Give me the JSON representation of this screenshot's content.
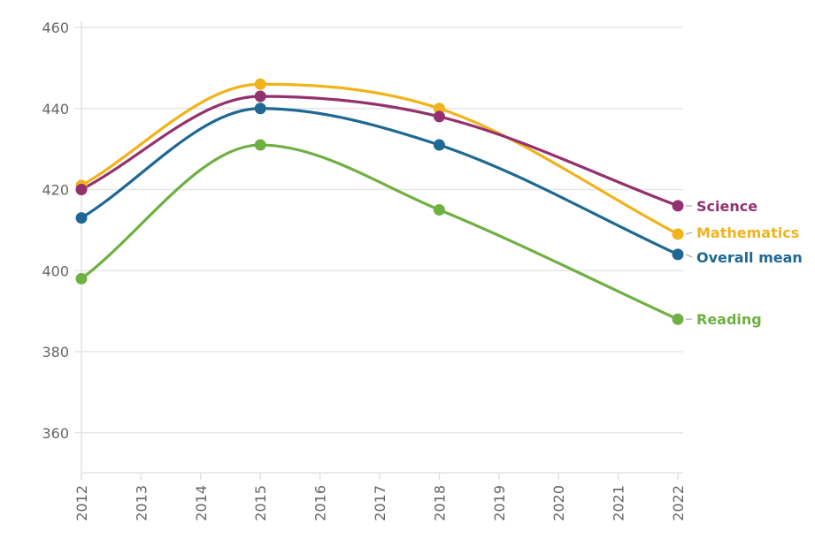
{
  "chart_data": {
    "type": "line",
    "title": "",
    "xlabel": "",
    "ylabel": "",
    "x": [
      2012,
      2015,
      2018,
      2022
    ],
    "xticks": [
      "2012",
      "2013",
      "2014",
      "2015",
      "2016",
      "2017",
      "2018",
      "2019",
      "2020",
      "2021",
      "2022"
    ],
    "xlim": [
      2012,
      2022
    ],
    "yticks": [
      "360",
      "380",
      "400",
      "420",
      "440",
      "460"
    ],
    "ylim": [
      350,
      460
    ],
    "grid": true,
    "legend": "right-end labels",
    "series": [
      {
        "name": "Science",
        "color": "#93316e",
        "values": [
          420,
          443,
          438,
          416
        ]
      },
      {
        "name": "Mathematics",
        "color": "#f0b31c",
        "values": [
          421,
          446,
          440,
          409
        ]
      },
      {
        "name": "Overall mean",
        "color": "#1f6893",
        "values": [
          413,
          440,
          431,
          404
        ]
      },
      {
        "name": "Reading",
        "color": "#6fb043",
        "values": [
          398,
          431,
          415,
          388
        ]
      }
    ]
  }
}
